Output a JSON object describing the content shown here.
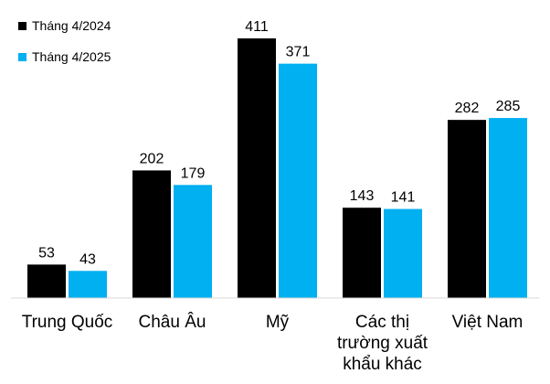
{
  "chart_data": {
    "type": "bar",
    "categories": [
      [
        "Trung Quốc"
      ],
      [
        "Châu Âu"
      ],
      [
        "Mỹ"
      ],
      [
        "Các thị",
        "trường xuất",
        "khẩu khác"
      ],
      [
        "Việt Nam"
      ]
    ],
    "series": [
      {
        "name": "Tháng 4/2024",
        "color": "#000000",
        "values": [
          53,
          202,
          411,
          143,
          282
        ]
      },
      {
        "name": "Tháng 4/2025",
        "color": "#00b0f0",
        "values": [
          43,
          179,
          371,
          141,
          285
        ]
      }
    ],
    "title": "",
    "xlabel": "",
    "ylabel": "",
    "ylim": [
      0,
      411
    ],
    "grid": false,
    "legend_position": "top-left",
    "value_labels": true
  }
}
